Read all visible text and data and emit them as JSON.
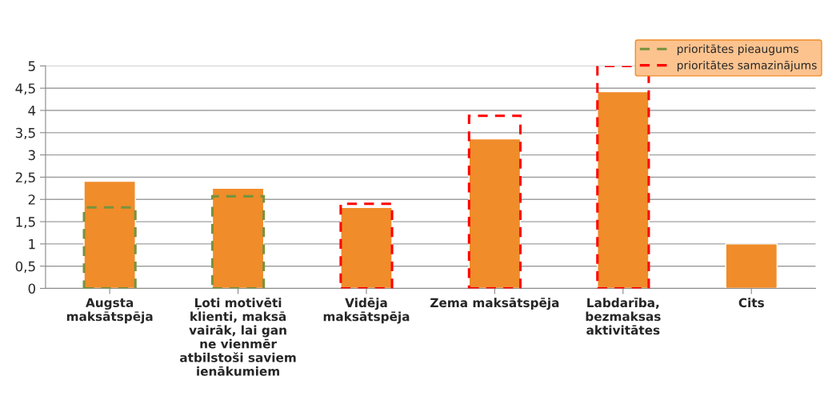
{
  "chart_data": {
    "type": "bar",
    "categories": [
      "Augsta maksātspēja",
      "Ļoti motivēti klienti, maksā vairāk, lai gan ne vienmēr atbilstoši saviem ienākumiem",
      "Vidēja maksātspēja",
      "Zema maksātspēja",
      "Labdarība, bezmaksas aktivitātes",
      "Cits"
    ],
    "series": [
      {
        "color": "#f08c2a",
        "values": [
          2.41,
          2.25,
          1.82,
          3.36,
          4.42,
          1.0
        ]
      },
      {
        "name": "prioritātes pieaugums",
        "color": "#77933c",
        "line_style": "dashed",
        "values": [
          1.82,
          2.07,
          null,
          null,
          null,
          null
        ]
      },
      {
        "name": "prioritātes samazinājums",
        "color": "#ff0000",
        "line_style": "dashed",
        "values": [
          null,
          null,
          1.9,
          3.88,
          5.0,
          null
        ]
      }
    ],
    "ylim": [
      0,
      5
    ],
    "yticks": [
      0,
      {
        "value": 0.5,
        "label": "0,5"
      },
      1,
      {
        "value": 1.5,
        "label": "1,5"
      },
      2,
      {
        "value": 2.5,
        "label": "2,5"
      },
      3,
      {
        "value": 3.5,
        "label": "3,5"
      },
      4,
      {
        "value": 4.5,
        "label": "4,5"
      },
      5
    ],
    "grid": "y",
    "legend": "top right"
  }
}
